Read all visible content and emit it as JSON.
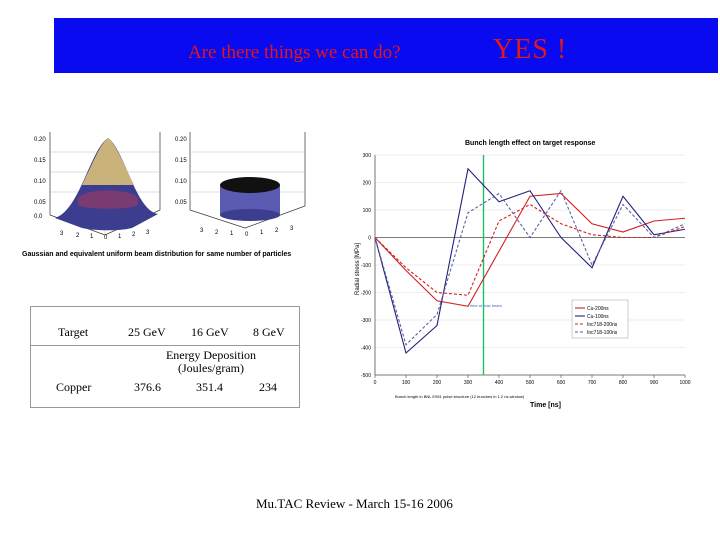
{
  "header": {
    "question": "Are there things we can do?",
    "answer": "YES !"
  },
  "left_figure": {
    "caption": "Gaussian and equivalent uniform beam distribution for same number of particles",
    "z_ticks": [
      "0.20",
      "0.15",
      "0.10",
      "0.05",
      "0.0"
    ],
    "base_ticks": [
      "3",
      "2",
      "1",
      "0",
      "1",
      "2",
      "3"
    ]
  },
  "table": {
    "headers": [
      "Target",
      "25 GeV",
      "16 GeV",
      "8 GeV"
    ],
    "span_label": "Energy Deposition (Joules/gram)",
    "rows": [
      {
        "target": "Copper",
        "values": [
          "376.6",
          "351.4",
          "234"
        ]
      }
    ]
  },
  "chart_data": {
    "type": "line",
    "title": "Bunch length effect on target response",
    "xlabel": "Time [ns]",
    "ylabel": "Radial stress [MPa]",
    "x": [
      0,
      100,
      200,
      300,
      400,
      500,
      600,
      700,
      800,
      900,
      1000
    ],
    "xlim": [
      0,
      1000
    ],
    "ylim": [
      -500,
      300
    ],
    "yticks": [
      300,
      200,
      100,
      0,
      -100,
      -200,
      -300,
      -400,
      -500
    ],
    "marker_line_x": 350,
    "annotations": [
      "time at max beam",
      "Bunch length in BNL E951 pulse structure (12 bunches in 1.2 ns window)"
    ],
    "legend_position": "right",
    "series": [
      {
        "name": "Cu-200ns",
        "color": "#d02020",
        "dash": "solid",
        "values": [
          0,
          -120,
          -230,
          -250,
          -50,
          150,
          160,
          50,
          20,
          60,
          70
        ]
      },
      {
        "name": "Cu-100ns",
        "color": "#202080",
        "dash": "solid",
        "values": [
          0,
          -420,
          -320,
          250,
          130,
          170,
          0,
          -110,
          150,
          10,
          30
        ]
      },
      {
        "name": "Inc718-200ns",
        "color": "#d02020",
        "dash": "dash",
        "values": [
          0,
          -110,
          -200,
          -210,
          60,
          120,
          50,
          10,
          0,
          0,
          40
        ]
      },
      {
        "name": "Inc718-100ns",
        "color": "#6060a0",
        "dash": "dash",
        "values": [
          0,
          -390,
          -280,
          90,
          160,
          0,
          170,
          -100,
          120,
          0,
          50
        ]
      }
    ]
  },
  "footer": {
    "text": "Mu.TAC Review - March 15-16 2006"
  }
}
